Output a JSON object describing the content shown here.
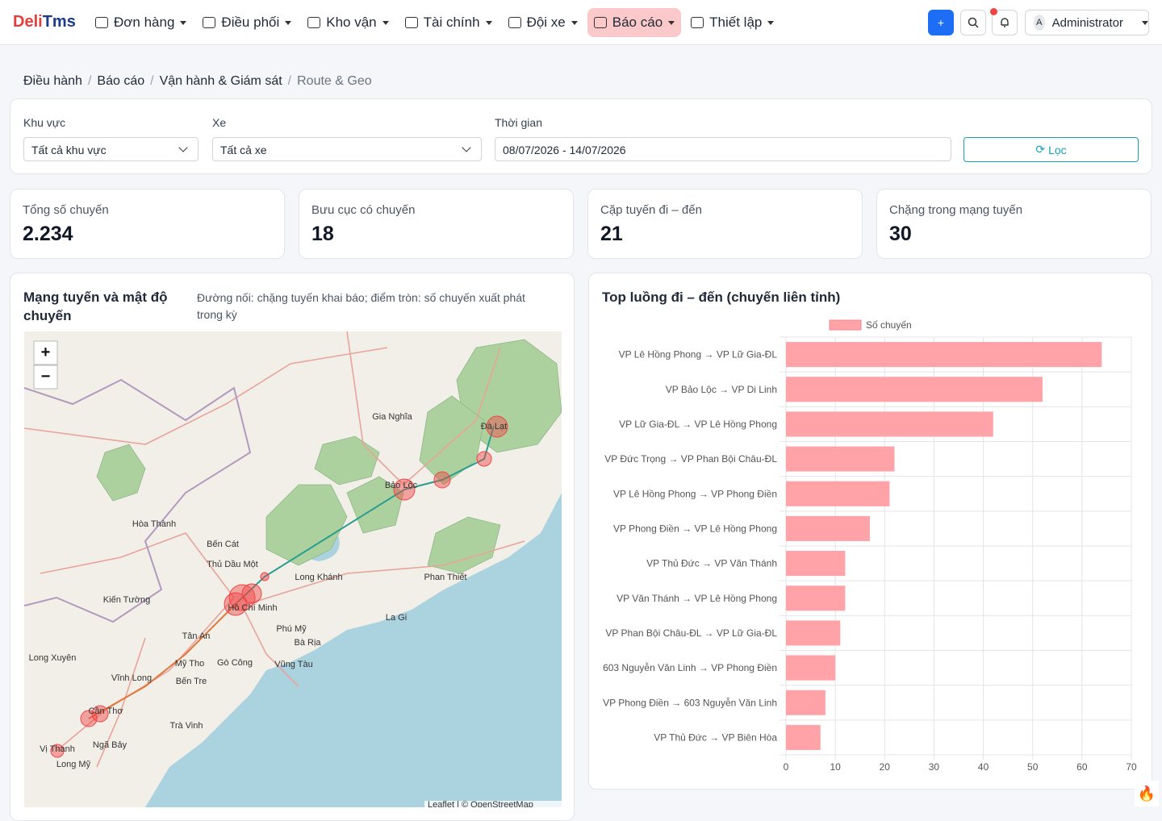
{
  "navbar": {
    "brand_a": "Deli",
    "brand_b": "Tms",
    "menu": [
      "Đơn hàng",
      "Điều phối",
      "Kho vận",
      "Tài chính",
      "Đội xe",
      "Báo cáo",
      "Thiết lập"
    ],
    "add_button": "+",
    "user_initial": "A",
    "user": "Administrator"
  },
  "breadcrumb": [
    "Điều hành",
    "Báo cáo",
    "Vận hành & Giám sát",
    "Route & Geo"
  ],
  "filters": [
    {
      "label": "Khu vực",
      "value": "Tất cả khu vực"
    },
    {
      "label": "Xe",
      "value": "Tất cả xe"
    },
    {
      "label": "Thời gian",
      "value": "08/07/2026 - 14/07/2026"
    }
  ],
  "filter_button": "Lọc",
  "kpis": [
    {
      "label": "Tổng số chuyến",
      "value": "2.234"
    },
    {
      "label": "Bưu cục có chuyến",
      "value": "18"
    },
    {
      "label": "Cặp tuyến đi – đến",
      "value": "21"
    },
    {
      "label": "Chặng trong mạng tuyến",
      "value": "30"
    }
  ],
  "map": {
    "title": "Mạng tuyến và mật độ chuyến",
    "note": "Đường nối: chặng tuyến khai báo; điểm tròn: số chuyến xuất phát trong kỳ",
    "zoom_in": "+",
    "zoom_out": "−",
    "labels": [
      "Gia Nghĩa",
      "Bảo Lộc",
      "Đà Lạt",
      "Hòa Thành",
      "Bến Cát",
      "Thủ Dầu Một",
      "Long Khánh",
      "Phan Thiết",
      "Kiến Tường",
      "Hồ Chí Minh",
      "Phú Mỹ",
      "Bà Rịa",
      "La Gi",
      "Tân An",
      "Mỹ Tho",
      "Gò Công",
      "Vũng Tàu",
      "Long Xuyên",
      "Vĩnh Long",
      "Bến Tre",
      "Cần Thơ",
      "Trà Vinh",
      "Ngã Bảy",
      "Long Mỹ",
      "Vị Thanh"
    ],
    "attribution": "Leaflet | © OpenStreetMap"
  },
  "chart_data": {
    "type": "bar",
    "orientation": "horizontal",
    "title": "Top luồng đi – đến (chuyến liên tỉnh)",
    "categories": [
      "VP Lê Hồng Phong → VP Lữ Gia-ĐL",
      "VP Bảo Lộc → VP Di Linh",
      "VP Lữ Gia-ĐL → VP Lê Hồng Phong",
      "VP Đức Trọng → VP Phan Bội Châu-ĐL",
      "VP Lê Hồng Phong → VP Phong Điền",
      "VP Phong Điền → VP Lê Hồng Phong",
      "VP Thủ Đức → VP Văn Thánh",
      "VP Văn Thánh → VP Lê Hồng Phong",
      "VP Phan Bội Châu-ĐL → VP Lữ Gia-ĐL",
      "603 Nguyễn Văn Linh → VP Phong Điền",
      "VP Phong Điền → 603 Nguyễn Văn Linh",
      "VP Thủ Đức → VP Biên Hòa"
    ],
    "series": [
      {
        "name": "Số chuyến",
        "color": "#ffa3a8",
        "values": [
          64,
          52,
          42,
          22,
          21,
          17,
          12,
          12,
          11,
          10,
          8,
          7
        ]
      }
    ],
    "xlim": [
      0,
      70
    ],
    "xticks": [
      0,
      10,
      20,
      30,
      40,
      50,
      60,
      70
    ],
    "grid": true,
    "legend": "top"
  }
}
